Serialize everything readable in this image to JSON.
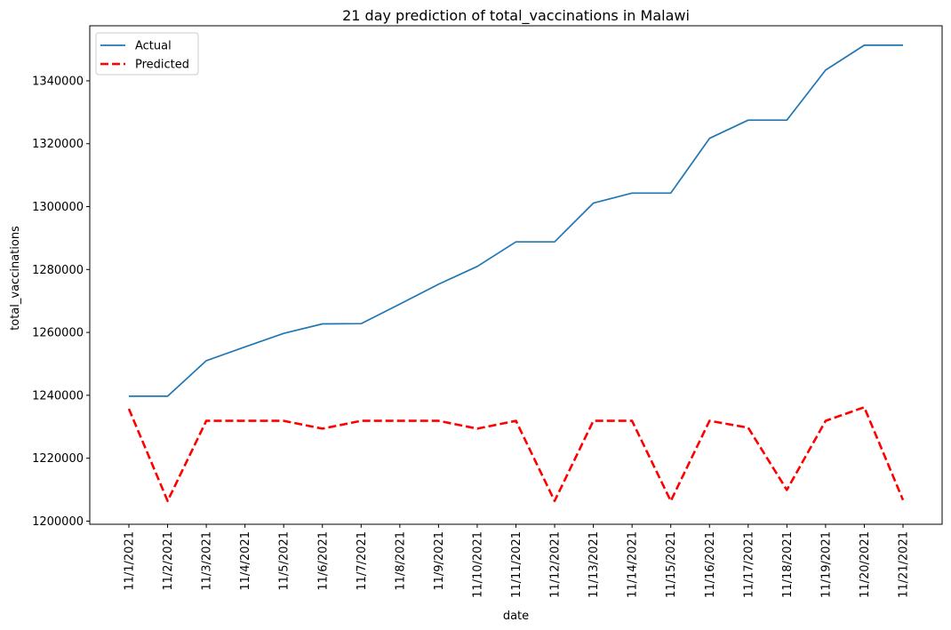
{
  "chart_data": {
    "type": "line",
    "title": "21 day prediction of total_vaccinations in Malawi",
    "xlabel": "date",
    "ylabel": "total_vaccinations",
    "categories": [
      "11/1/2021",
      "11/2/2021",
      "11/3/2021",
      "11/4/2021",
      "11/5/2021",
      "11/6/2021",
      "11/7/2021",
      "11/8/2021",
      "11/9/2021",
      "11/10/2021",
      "11/11/2021",
      "11/12/2021",
      "11/13/2021",
      "11/14/2021",
      "11/15/2021",
      "11/16/2021",
      "11/17/2021",
      "11/18/2021",
      "11/19/2021",
      "11/20/2021",
      "11/21/2021"
    ],
    "ylim": [
      1199000,
      1357500
    ],
    "yticks": [
      1200000,
      1220000,
      1240000,
      1260000,
      1280000,
      1300000,
      1320000,
      1340000
    ],
    "grid": false,
    "legend_position": "top-left",
    "series": [
      {
        "name": "Actual",
        "color": "#1f77b4",
        "style": "solid",
        "values": [
          1239700,
          1239700,
          1251000,
          1255400,
          1259700,
          1262700,
          1262800,
          1269000,
          1275300,
          1281000,
          1288800,
          1288800,
          1301100,
          1304300,
          1304300,
          1321700,
          1327500,
          1327500,
          1343400,
          1351300,
          1351300
        ]
      },
      {
        "name": "Predicted",
        "color": "#ff0000",
        "style": "dashed",
        "values": [
          1235700,
          1206400,
          1231900,
          1231900,
          1231900,
          1229400,
          1231900,
          1231900,
          1231900,
          1229400,
          1231900,
          1206400,
          1231900,
          1231900,
          1206400,
          1231900,
          1229700,
          1209900,
          1231900,
          1236200,
          1206700
        ]
      }
    ]
  }
}
